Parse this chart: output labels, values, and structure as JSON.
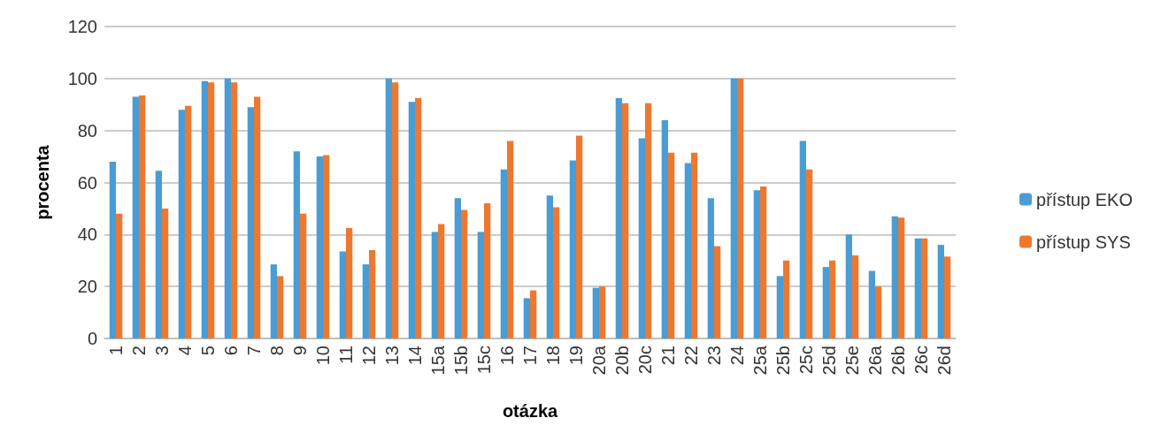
{
  "chart_data": {
    "type": "bar",
    "xlabel": "otázka",
    "ylabel": "procenta",
    "categories": [
      "1",
      "2",
      "3",
      "4",
      "5",
      "6",
      "7",
      "8",
      "9",
      "10",
      "11",
      "12",
      "13",
      "14",
      "15a",
      "15b",
      "15c",
      "16",
      "17",
      "18",
      "19",
      "20a",
      "20b",
      "20c",
      "21",
      "22",
      "23",
      "24",
      "25a",
      "25b",
      "25c",
      "25d",
      "25e",
      "26a",
      "26b",
      "26c",
      "26d"
    ],
    "series": [
      {
        "name": "přístup EKO",
        "color": "#4a9cd4",
        "values": [
          68,
          93,
          64.5,
          88,
          99,
          100,
          89,
          28.5,
          72,
          70,
          33.5,
          28.5,
          100,
          91,
          41,
          54,
          41,
          65,
          15.5,
          55,
          68.5,
          19.5,
          92.5,
          77,
          84,
          67.5,
          54,
          100,
          57,
          24,
          76,
          27.5,
          40,
          26,
          47,
          38.5,
          36
        ]
      },
      {
        "name": "přístup SYS",
        "color": "#ed7830",
        "values": [
          48,
          93.5,
          50,
          89.5,
          98.5,
          98.5,
          93,
          24,
          48,
          70.5,
          42.5,
          34,
          98.5,
          92.5,
          44,
          49.5,
          52,
          76,
          18.5,
          50.5,
          78,
          20,
          90.5,
          90.5,
          71.5,
          71.5,
          35.5,
          100,
          58.5,
          30,
          65,
          30,
          32,
          20,
          46.5,
          38.5,
          31.5
        ]
      }
    ],
    "ylim": [
      0,
      120
    ],
    "yticks": [
      0,
      20,
      40,
      60,
      80,
      100,
      120
    ],
    "grid": "y",
    "legend": "right"
  }
}
